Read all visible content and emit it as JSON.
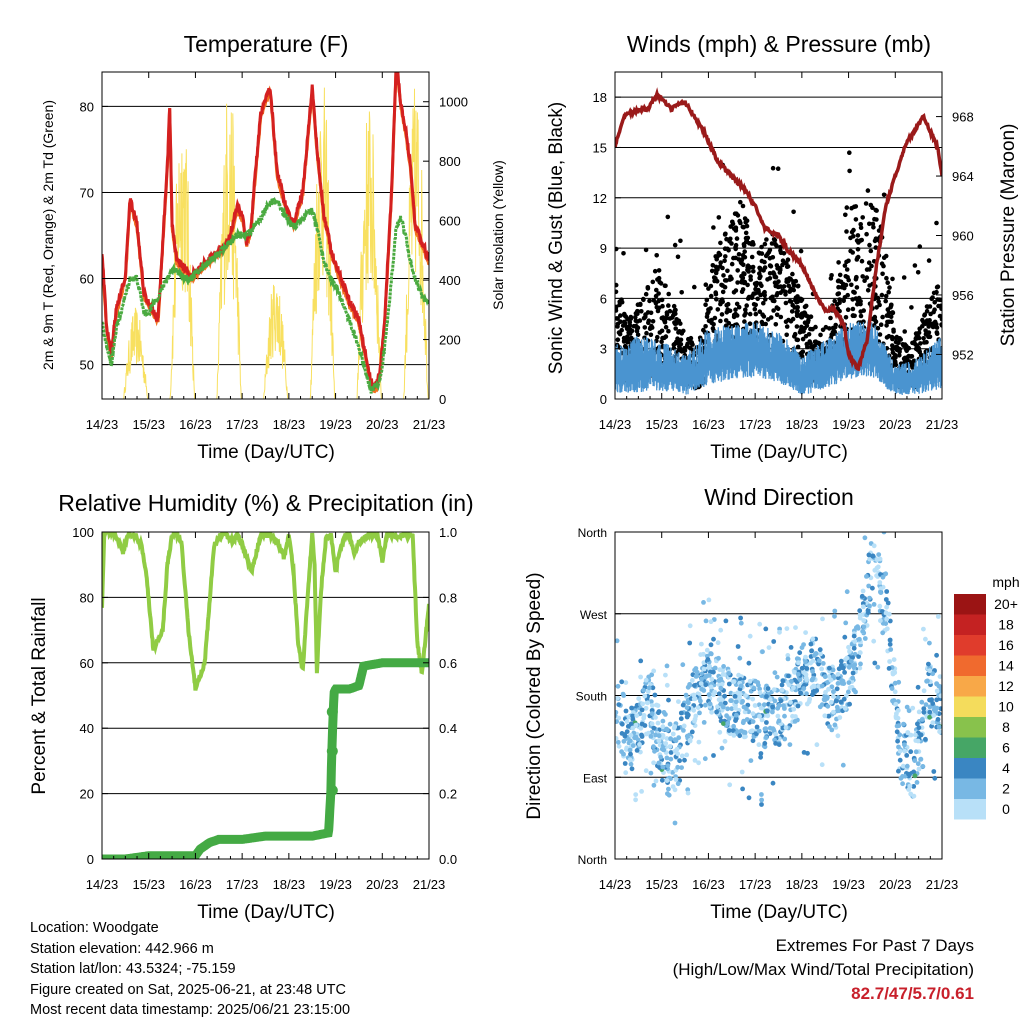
{
  "info": {
    "location": "Location: Woodgate",
    "elevation": "Station elevation: 442.966 m",
    "latlon": "Station lat/lon: 43.5324; -75.159",
    "created": "Figure created on Sat, 2025-06-21, at 23:48 UTC",
    "timestamp": "Most recent data timestamp: 2025/06/21 23:15:00"
  },
  "extremes": {
    "title": "Extremes For Past 7 Days",
    "subtitle": "(High/Low/Max Wind/Total Precipitation)",
    "values": "82.7/47/5.7/0.61"
  },
  "colors": {
    "temp2m": "#d42020",
    "temp9m": "#f07020",
    "dewpoint": "#4aaa40",
    "solar": "#f8e060",
    "gust": "#000000",
    "wind": "#4a94d0",
    "pressure": "#9a1a1a",
    "rh": "#90cc44",
    "precip": "#44aa44"
  },
  "chart_data": [
    {
      "id": "temperature",
      "type": "line",
      "title": "Temperature (F)",
      "xlabel": "Time (Day/UTC)",
      "ylabel": "2m & 9m T (Red, Orange) & 2m Td (Green)",
      "y2label": "Solar Insolation (Yellow)",
      "x_ticks": [
        "14/23",
        "15/23",
        "16/23",
        "17/23",
        "18/23",
        "19/23",
        "20/23",
        "21/23"
      ],
      "xlim": [
        0,
        7
      ],
      "ylim": [
        46,
        84
      ],
      "y_ticks": [
        50,
        60,
        70,
        80
      ],
      "y2lim": [
        0,
        1100
      ],
      "y2_ticks": [
        0,
        200,
        400,
        600,
        800,
        1000
      ],
      "grid": true,
      "series": [
        {
          "key": "temp",
          "x": [
            0,
            0.1,
            0.2,
            0.3,
            0.5,
            0.6,
            0.75,
            0.9,
            1.0,
            1.2,
            1.4,
            1.45,
            1.5,
            1.6,
            1.75,
            1.8,
            1.9,
            2.1,
            2.3,
            2.5,
            2.7,
            2.9,
            3.0,
            3.1,
            3.2,
            3.25,
            3.4,
            3.6,
            3.75,
            3.85,
            3.95,
            4.1,
            4.3,
            4.5,
            4.6,
            4.75,
            4.85,
            4.9,
            5.1,
            5.3,
            5.5,
            5.6,
            5.75,
            5.85,
            5.95,
            6.05,
            6.2,
            6.3,
            6.4,
            6.5,
            6.6,
            6.7,
            6.85,
            7.0
          ],
          "y": [
            63,
            54,
            51,
            56,
            60,
            69,
            66,
            58,
            57,
            55,
            73,
            80,
            66,
            62,
            61,
            61,
            60,
            61,
            62,
            63,
            64,
            68,
            67,
            64,
            66,
            70,
            79,
            82,
            72,
            70,
            68,
            66,
            70,
            82,
            75,
            67,
            65,
            63,
            60,
            57,
            55,
            52,
            48,
            47,
            49,
            55,
            70,
            85,
            80,
            77,
            73,
            66,
            64,
            62
          ]
        },
        {
          "key": "dewpoint",
          "x": [
            0,
            0.1,
            0.2,
            0.3,
            0.5,
            0.6,
            0.75,
            0.9,
            1.0,
            1.2,
            1.4,
            1.5,
            1.6,
            1.75,
            1.9,
            2.1,
            2.3,
            2.5,
            2.7,
            2.9,
            3.1,
            3.25,
            3.4,
            3.6,
            3.75,
            3.85,
            3.95,
            4.1,
            4.3,
            4.5,
            4.6,
            4.75,
            4.9,
            5.1,
            5.3,
            5.5,
            5.6,
            5.75,
            5.95,
            6.05,
            6.2,
            6.3,
            6.4,
            6.5,
            6.6,
            6.7,
            6.85,
            7.0
          ],
          "y": [
            55,
            52,
            50,
            54,
            58,
            60,
            60,
            56,
            56,
            58,
            60,
            61,
            61,
            60,
            60,
            61,
            62,
            63,
            64,
            65,
            65,
            66,
            67,
            69,
            69,
            68,
            67,
            66,
            67,
            68,
            66,
            62,
            60,
            58,
            55,
            52,
            50,
            47,
            48,
            52,
            60,
            66,
            67,
            65,
            62,
            60,
            58,
            57
          ]
        }
      ],
      "solar": {
        "day_centers": [
          0.72,
          1.72,
          2.72,
          3.72,
          4.72,
          5.72,
          6.72
        ],
        "peaks": [
          310,
          1010,
          1090,
          430,
          1090,
          1020,
          1080
        ]
      }
    },
    {
      "id": "winds",
      "type": "scatter",
      "title": "Winds (mph) & Pressure (mb)",
      "xlabel": "Time (Day/UTC)",
      "ylabel": "Sonic Wind & Gust (Blue, Black)",
      "y2label": "Station Pressure (Maroon)",
      "x_ticks": [
        "14/23",
        "15/23",
        "16/23",
        "17/23",
        "18/23",
        "19/23",
        "20/23",
        "21/23"
      ],
      "xlim": [
        0,
        7
      ],
      "ylim": [
        0,
        19.5
      ],
      "y_ticks": [
        0,
        3,
        6,
        9,
        12,
        15,
        18
      ],
      "y2lim": [
        949,
        971
      ],
      "y2_ticks": [
        952,
        956,
        960,
        964,
        968
      ],
      "grid": true,
      "pressure": {
        "x": [
          0,
          0.2,
          0.5,
          0.7,
          0.9,
          1.2,
          1.5,
          1.7,
          1.9,
          2.2,
          2.5,
          2.8,
          3.0,
          3.2,
          3.5,
          3.7,
          4.0,
          4.3,
          4.5,
          4.7,
          4.9,
          5.0,
          5.2,
          5.4,
          5.6,
          5.8,
          6.0,
          6.2,
          6.4,
          6.6,
          6.75,
          6.9,
          7.0
        ],
        "y": [
          966,
          968,
          968.5,
          968.5,
          969.5,
          968.5,
          969,
          968,
          967,
          965,
          964,
          963,
          962,
          960.5,
          960,
          959,
          958,
          956,
          955,
          955,
          954,
          952,
          951,
          953,
          958,
          962,
          964,
          966,
          967,
          968,
          967,
          966,
          964
        ]
      },
      "gust_envelope": {
        "x": [
          0,
          0.3,
          0.6,
          0.9,
          1.2,
          1.5,
          1.8,
          2.1,
          2.4,
          2.7,
          3.0,
          3.3,
          3.6,
          3.9,
          4.2,
          4.5,
          4.8,
          5.1,
          5.4,
          5.7,
          6.0,
          6.3,
          6.6,
          6.9,
          7.0
        ],
        "lo": [
          1,
          1,
          1,
          1.5,
          1,
          1,
          0.5,
          2,
          3,
          3,
          3,
          3,
          3,
          2,
          1,
          1,
          2,
          3,
          3,
          2,
          0.5,
          0.5,
          1,
          2,
          1
        ],
        "hi": [
          7,
          5,
          6,
          8,
          6,
          4,
          3,
          9,
          10,
          12,
          9,
          10,
          9,
          7,
          5,
          3,
          8,
          12,
          12,
          11,
          4,
          3,
          5,
          7,
          6
        ]
      },
      "wind_envelope": {
        "x": [
          0,
          0.5,
          1.0,
          1.5,
          2.0,
          2.5,
          3.0,
          3.5,
          4.0,
          4.5,
          5.0,
          5.5,
          6.0,
          6.5,
          7.0
        ],
        "lo": [
          0.3,
          0.4,
          0.5,
          0.2,
          0.8,
          1.2,
          1.3,
          1.0,
          0.2,
          0.6,
          1.2,
          1.3,
          0.2,
          0.3,
          0.6
        ],
        "hi": [
          3.2,
          3.8,
          3.5,
          2.6,
          4.2,
          4.5,
          4.6,
          4.0,
          2.8,
          3.5,
          4.6,
          4.8,
          2.0,
          2.5,
          3.8
        ]
      }
    },
    {
      "id": "humidity",
      "type": "line",
      "title": "Relative Humidity (%) & Precipitation (in)",
      "xlabel": "Time (Day/UTC)",
      "ylabel": "Percent & Total Rainfall",
      "x_ticks": [
        "14/23",
        "15/23",
        "16/23",
        "17/23",
        "18/23",
        "19/23",
        "20/23",
        "21/23"
      ],
      "xlim": [
        0,
        7
      ],
      "ylim": [
        0,
        100
      ],
      "y_ticks": [
        0,
        20,
        40,
        60,
        80,
        100
      ],
      "y2lim": [
        0,
        1.0
      ],
      "y2_ticks": [
        "0.0",
        "0.2",
        "0.4",
        "0.6",
        "0.8",
        "1.0"
      ],
      "grid": true,
      "rh": {
        "x": [
          0,
          0.05,
          0.15,
          0.3,
          0.45,
          0.55,
          0.7,
          0.85,
          0.95,
          1.1,
          1.3,
          1.4,
          1.5,
          1.6,
          1.7,
          1.85,
          2.0,
          2.2,
          2.4,
          2.6,
          2.8,
          2.9,
          3.0,
          3.2,
          3.4,
          3.6,
          3.75,
          3.9,
          4.0,
          4.1,
          4.2,
          4.3,
          4.4,
          4.5,
          4.55,
          4.6,
          4.65,
          4.7,
          4.8,
          4.9,
          5.0,
          5.1,
          5.2,
          5.3,
          5.4,
          5.5,
          5.7,
          5.9,
          6.0,
          6.1,
          6.2,
          6.3,
          6.5,
          6.65,
          6.75,
          6.85,
          7.0
        ],
        "y": [
          77,
          100,
          100,
          99,
          94,
          99,
          99,
          96,
          87,
          64,
          70,
          90,
          99,
          99,
          97,
          70,
          52,
          60,
          96,
          100,
          97,
          99,
          96,
          88,
          99,
          99,
          97,
          92,
          99,
          88,
          66,
          58,
          80,
          99,
          90,
          57,
          72,
          84,
          99,
          99,
          88,
          95,
          99,
          99,
          93,
          97,
          99,
          99,
          91,
          99,
          99,
          99,
          99,
          99,
          66,
          57,
          78
        ]
      },
      "precip": {
        "x": [
          0,
          0.5,
          1.0,
          1.5,
          2.0,
          2.1,
          2.3,
          2.5,
          2.8,
          3.0,
          3.5,
          4.0,
          4.5,
          4.85,
          4.9,
          4.92,
          4.95,
          4.97,
          5.0,
          5.3,
          5.5,
          5.6,
          6.0,
          6.5,
          7.0
        ],
        "y": [
          0.0,
          0.0,
          0.01,
          0.01,
          0.01,
          0.03,
          0.05,
          0.06,
          0.06,
          0.06,
          0.07,
          0.07,
          0.07,
          0.08,
          0.21,
          0.33,
          0.45,
          0.51,
          0.52,
          0.52,
          0.53,
          0.59,
          0.6,
          0.6,
          0.6
        ]
      }
    },
    {
      "id": "direction",
      "type": "scatter",
      "title": "Wind Direction",
      "xlabel": "Time (Day/UTC)",
      "ylabel": "Direction (Colored By Speed)",
      "x_ticks": [
        "14/23",
        "15/23",
        "16/23",
        "17/23",
        "18/23",
        "19/23",
        "20/23",
        "21/23"
      ],
      "xlim": [
        0,
        7
      ],
      "ylim": [
        0,
        360
      ],
      "y_tick_labels": [
        "North",
        "East",
        "South",
        "West",
        "North"
      ],
      "y_tick_values": [
        0,
        90,
        180,
        270,
        360
      ],
      "grid": true,
      "legend_title": "mph",
      "legend_labels": [
        "20+",
        "18",
        "16",
        "14",
        "12",
        "10",
        "8",
        "6",
        "4",
        "2",
        "0"
      ],
      "legend_colors": [
        "#9b1414",
        "#c42222",
        "#e03c2c",
        "#f06a2e",
        "#f8a848",
        "#f4dc5c",
        "#88c24c",
        "#46a666",
        "#3a86c2",
        "#78b8e4",
        "#b8e0f8"
      ],
      "legend_placement": "right",
      "track": {
        "x": [
          0,
          0.4,
          0.7,
          1.0,
          1.3,
          1.6,
          1.9,
          2.2,
          2.5,
          2.8,
          3.1,
          3.4,
          3.7,
          4.0,
          4.3,
          4.6,
          4.9,
          5.2,
          5.5,
          5.8,
          6.1,
          6.4,
          6.7,
          7.0
        ],
        "y": [
          160,
          130,
          175,
          120,
          110,
          160,
          200,
          190,
          170,
          165,
          160,
          155,
          170,
          200,
          210,
          175,
          185,
          230,
          320,
          280,
          120,
          100,
          180,
          170
        ]
      }
    }
  ]
}
